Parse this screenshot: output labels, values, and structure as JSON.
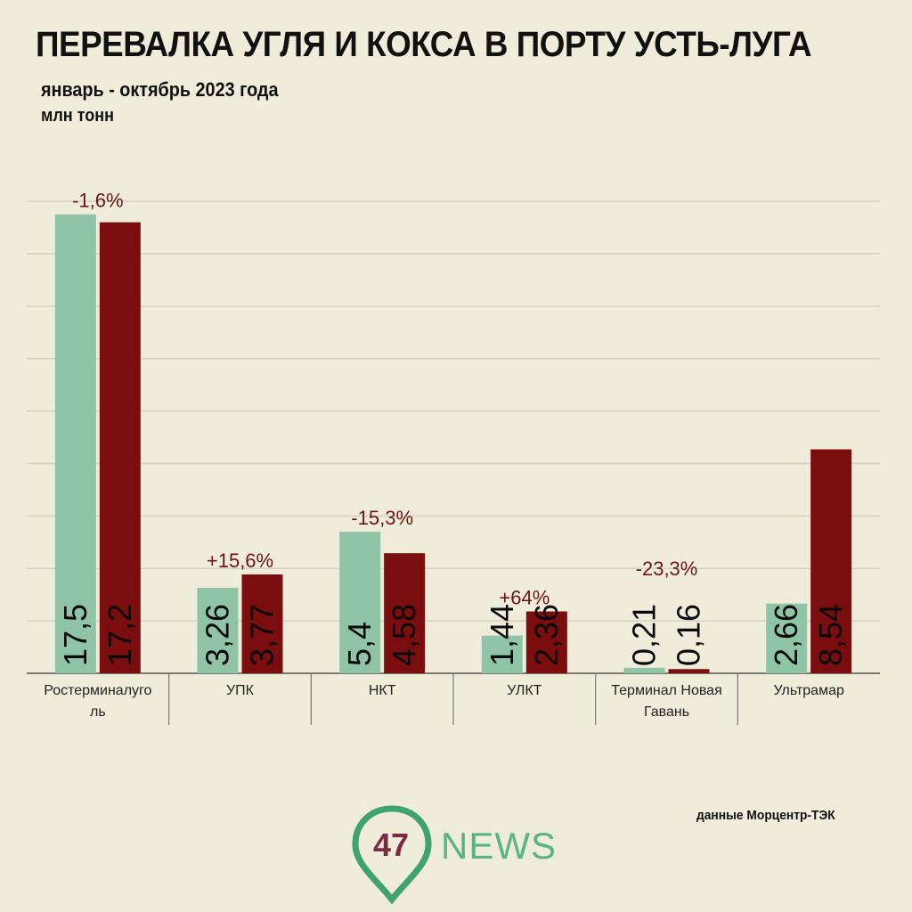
{
  "title": "ПЕРЕВАЛКА УГЛЯ И КОКСА В ПОРТУ УСТЬ-ЛУГА",
  "subtitle": "январь - октябрь 2023 года",
  "unit": "млн тонн",
  "source": "данные Морцентр-ТЭК",
  "logo": {
    "number": "47",
    "word": "NEWS",
    "pin_color": "#3fa36f",
    "number_color": "#7b2a43"
  },
  "colors": {
    "series_a": "#8fc5a6",
    "series_b": "#7a0e0e",
    "change_label": "#6b1515",
    "grid": "#d4d0c4",
    "background": "#f0ecda"
  },
  "chart_data": {
    "type": "bar",
    "categories": [
      "Ростерминалуголь",
      "УПК",
      "НКТ",
      "УЛКТ",
      "Терминал Новая Гавань",
      "Ультрамар"
    ],
    "category_labels": [
      [
        "Ростерминалуго",
        "ль"
      ],
      [
        "УПК"
      ],
      [
        "НКТ"
      ],
      [
        "УЛКТ"
      ],
      [
        "Терминал Новая",
        "Гавань"
      ],
      [
        "Ультрамар"
      ]
    ],
    "series": [
      {
        "values": [
          17.5,
          3.26,
          5.4,
          1.44,
          0.21,
          2.66
        ],
        "labels": [
          "17,5",
          "3,26",
          "5,4",
          "1,44",
          "0,21",
          "2,66"
        ]
      },
      {
        "values": [
          17.2,
          3.77,
          4.58,
          2.36,
          0.16,
          8.54
        ],
        "labels": [
          "17,2",
          "3,77",
          "4,58",
          "2,36",
          "0,16",
          "8,54"
        ]
      }
    ],
    "change_labels": [
      "-1,6%",
      "+15,6%",
      "-15,3%",
      "+64%",
      "-23,3%",
      ""
    ],
    "ylim": [
      0,
      18
    ],
    "grid": true
  }
}
